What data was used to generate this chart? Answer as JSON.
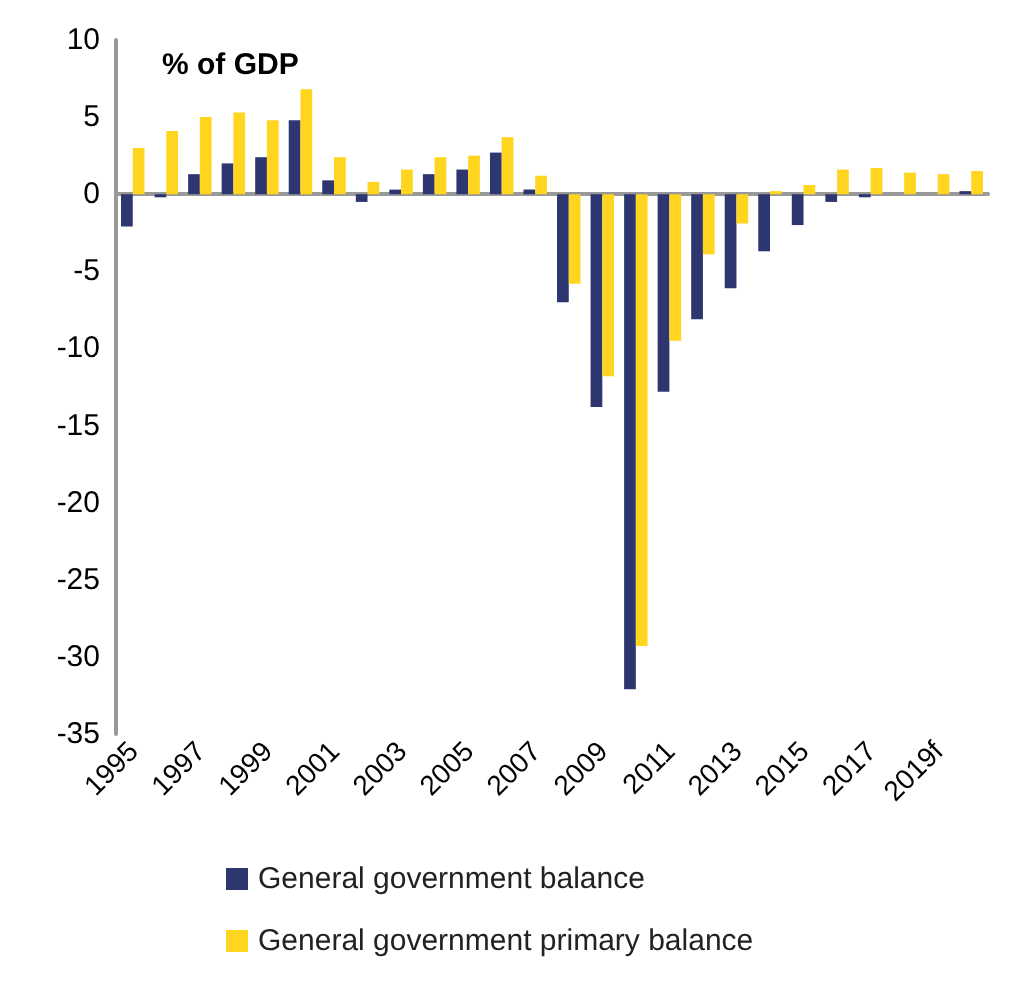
{
  "chart_data": {
    "type": "bar",
    "title": "% of GDP",
    "categories": [
      "1995",
      null,
      "1997",
      null,
      "1999",
      null,
      "2001",
      null,
      "2003",
      null,
      "2005",
      null,
      "2007",
      null,
      "2009",
      null,
      "2011",
      null,
      "2013",
      null,
      "2015",
      null,
      "2017",
      null,
      "2019f",
      null
    ],
    "series": [
      {
        "name": "General government balance",
        "color": "#2e3670",
        "values": [
          -2.1,
          -0.2,
          1.3,
          2.0,
          2.4,
          4.8,
          0.9,
          -0.5,
          0.3,
          1.3,
          1.6,
          2.7,
          0.3,
          -7.0,
          -13.8,
          -32.1,
          -12.8,
          -8.1,
          -6.1,
          -3.7,
          -2.0,
          -0.5,
          -0.2,
          0.0,
          0.0,
          0.2
        ]
      },
      {
        "name": "General government primary balance",
        "color": "#ffd520",
        "values": [
          3.0,
          4.1,
          5.0,
          5.3,
          4.8,
          6.8,
          2.4,
          0.8,
          1.6,
          2.4,
          2.5,
          3.7,
          1.2,
          -5.8,
          -11.8,
          -29.3,
          -9.5,
          -3.9,
          -1.9,
          0.2,
          0.6,
          1.6,
          1.7,
          1.4,
          1.3,
          1.5
        ]
      }
    ],
    "ylim": [
      -35,
      10
    ],
    "yticks": [
      -35,
      -30,
      -25,
      -20,
      -15,
      -10,
      -5,
      0,
      5,
      10
    ],
    "legend": "bottom"
  }
}
